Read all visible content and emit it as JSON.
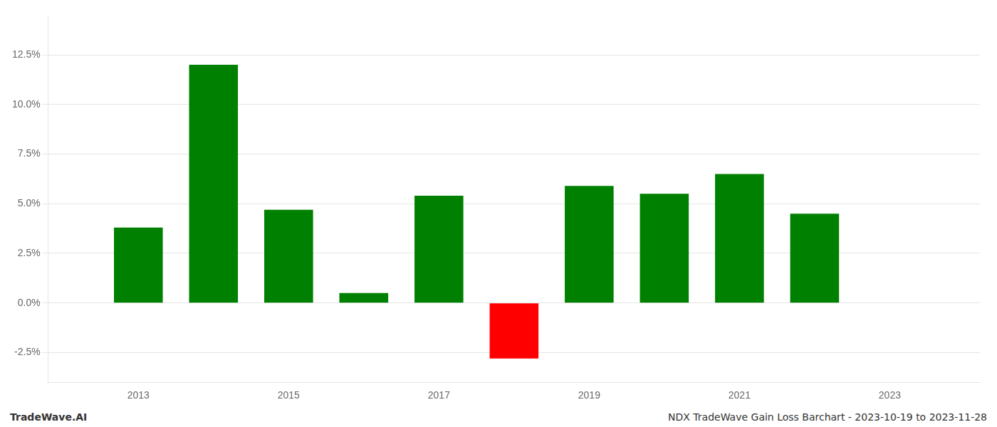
{
  "chart_data": {
    "type": "bar",
    "x": [
      2013,
      2014,
      2015,
      2016,
      2017,
      2018,
      2019,
      2020,
      2021,
      2022
    ],
    "values": [
      0.038,
      0.12,
      0.047,
      0.005,
      0.054,
      -0.028,
      0.059,
      0.055,
      0.065,
      0.045
    ],
    "colors": [
      "#008000",
      "#008000",
      "#008000",
      "#008000",
      "#008000",
      "#ff0000",
      "#008000",
      "#008000",
      "#008000",
      "#008000"
    ],
    "ylim": [
      -0.04,
      0.145
    ],
    "yticks": [
      {
        "value": -0.025,
        "label": "-2.5%"
      },
      {
        "value": 0.0,
        "label": "0.0%"
      },
      {
        "value": 0.025,
        "label": "2.5%"
      },
      {
        "value": 0.05,
        "label": "5.0%"
      },
      {
        "value": 0.075,
        "label": "7.5%"
      },
      {
        "value": 0.1,
        "label": "10.0%"
      },
      {
        "value": 0.125,
        "label": "12.5%"
      }
    ],
    "xlim": [
      2011.8,
      2024.2
    ],
    "xticks": [
      2013,
      2015,
      2017,
      2019,
      2021,
      2023
    ],
    "grid": "y",
    "annotations": [
      "TradeWave.AI",
      "NDX TradeWave Gain Loss Barchart - 2023-10-19 to 2023-11-28"
    ]
  }
}
